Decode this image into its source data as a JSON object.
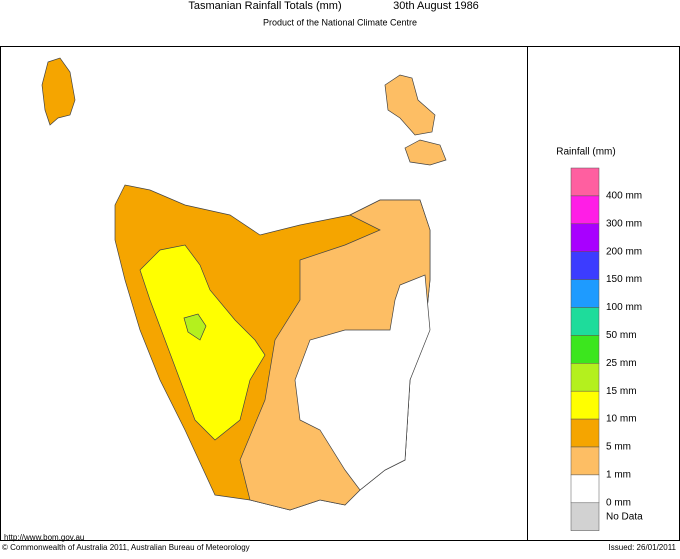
{
  "header": {
    "title": "Tasmanian Rainfall Totals (mm)",
    "date": "30th August 1986",
    "subtitle": "Product of the National Climate Centre"
  },
  "legend": {
    "title": "Rainfall (mm)",
    "colors": [
      "#ff5fa0",
      "#ff1ee6",
      "#a800ff",
      "#3c3cff",
      "#1e9bff",
      "#1edc9b",
      "#3ce61e",
      "#b4f01e",
      "#ffff00",
      "#f5a500",
      "#fdbe64",
      "#ffffff",
      "#d2d2d2"
    ],
    "labels": [
      "400 mm",
      "300 mm",
      "200 mm",
      "150 mm",
      "100 mm",
      "50 mm",
      "25 mm",
      "15 mm",
      "10 mm",
      "5 mm",
      "1 mm",
      "0 mm",
      "No Data"
    ]
  },
  "footer": {
    "url": "http://www.bom.gov.au",
    "copyright": "© Commonwealth of Australia 2011, Australian Bureau of Meteorology",
    "issued": "Issued: 26/01/2011"
  }
}
